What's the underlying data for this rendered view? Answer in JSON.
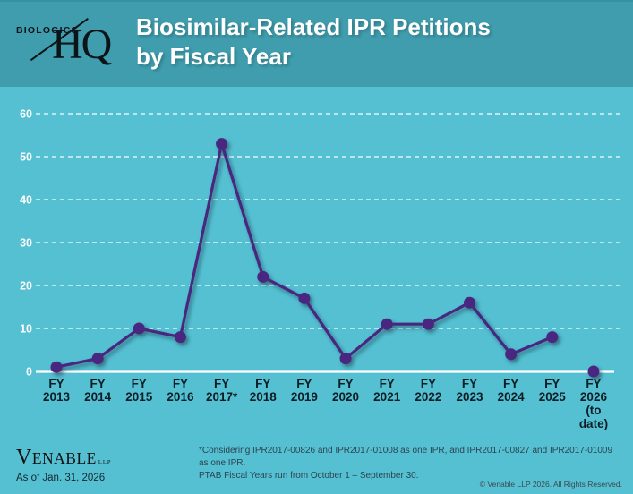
{
  "header": {
    "title_line1": "Biosimilar-Related IPR Petitions",
    "title_line2": "by Fiscal Year"
  },
  "logo": {
    "biologics": "BIOLOGICS",
    "hq": "HQ"
  },
  "chart_data": {
    "type": "line",
    "title": "Biosimilar-Related IPR Petitions by Fiscal Year",
    "categories": [
      "FY 2013",
      "FY 2014",
      "FY 2015",
      "FY 2016",
      "FY 2017*",
      "FY 2018",
      "FY 2019",
      "FY 2020",
      "FY 2021",
      "FY 2022",
      "FY 2023",
      "FY 2024",
      "FY 2025",
      "FY 2026 (to date)"
    ],
    "values": [
      1,
      3,
      10,
      8,
      53,
      22,
      17,
      3,
      11,
      11,
      16,
      4,
      8,
      0
    ],
    "xlabel": "",
    "ylabel": "",
    "ylim": [
      0,
      60
    ],
    "yticks": [
      0,
      10,
      20,
      30,
      40,
      50,
      60
    ],
    "grid": "horizontal white dashed gridlines at each ytick, solid white baseline at 0",
    "legend": "none",
    "marker": "filled circle with drop shadow",
    "last_point_disconnected": true
  },
  "footnote": {
    "line1": "*Considering IPR2017-00826 and IPR2017-01008 as one IPR, and IPR2017-00827 and IPR2017-01009 as one IPR.",
    "line2": "PTAB Fiscal Years run from October 1 – September 30."
  },
  "footer": {
    "venable": "VENABLE",
    "llp": "LLP",
    "as_of": "As of Jan. 31, 2026",
    "copyright": "© Venable LLP 2026. All Rights Reserved."
  },
  "colors": {
    "header_bg": "#3f9dad",
    "body_bg": "#54c0d2",
    "line": "#4a2780",
    "gridline": "#ffffff",
    "axis": "#ffffff",
    "y_label": "#ffffff",
    "x_label": "#0d1d26"
  }
}
